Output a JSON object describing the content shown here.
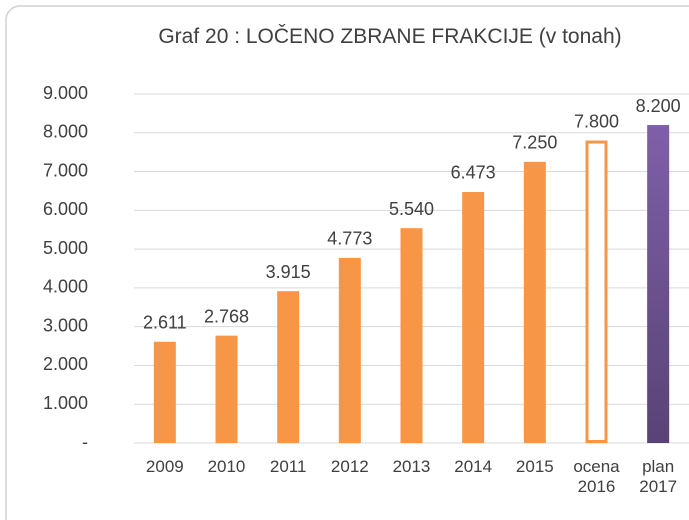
{
  "chart_data": {
    "type": "bar",
    "title": "Graf 20 : LOČENO ZBRANE FRAKCIJE (v tonah)",
    "categories": [
      "2009",
      "2010",
      "2011",
      "2012",
      "2013",
      "2014",
      "2015",
      "ocena 2016",
      "plan 2017"
    ],
    "values": [
      2611,
      2768,
      3915,
      4773,
      5540,
      6473,
      7250,
      7800,
      8200
    ],
    "value_labels": [
      "2.611",
      "2.768",
      "3.915",
      "4.773",
      "5.540",
      "6.473",
      "7.250",
      "7.800",
      "8.200"
    ],
    "colors": [
      "#f79646",
      "#f79646",
      "#f79646",
      "#f79646",
      "#f79646",
      "#f79646",
      "#f79646",
      "#f79646",
      "#7f5fa8"
    ],
    "fill_styles": [
      "solid",
      "solid",
      "solid",
      "solid",
      "solid",
      "solid",
      "solid",
      "outline",
      "gradient"
    ],
    "ylim": [
      0,
      9000
    ],
    "yticks": [
      {
        "value": 0,
        "label": "-"
      },
      {
        "value": 1000,
        "label": "1.000"
      },
      {
        "value": 2000,
        "label": "2.000"
      },
      {
        "value": 3000,
        "label": "3.000"
      },
      {
        "value": 4000,
        "label": "4.000"
      },
      {
        "value": 5000,
        "label": "5.000"
      },
      {
        "value": 6000,
        "label": "6.000"
      },
      {
        "value": 7000,
        "label": "7.000"
      },
      {
        "value": 8000,
        "label": "8.000"
      },
      {
        "value": 9000,
        "label": "9.000"
      }
    ],
    "grid": true
  }
}
